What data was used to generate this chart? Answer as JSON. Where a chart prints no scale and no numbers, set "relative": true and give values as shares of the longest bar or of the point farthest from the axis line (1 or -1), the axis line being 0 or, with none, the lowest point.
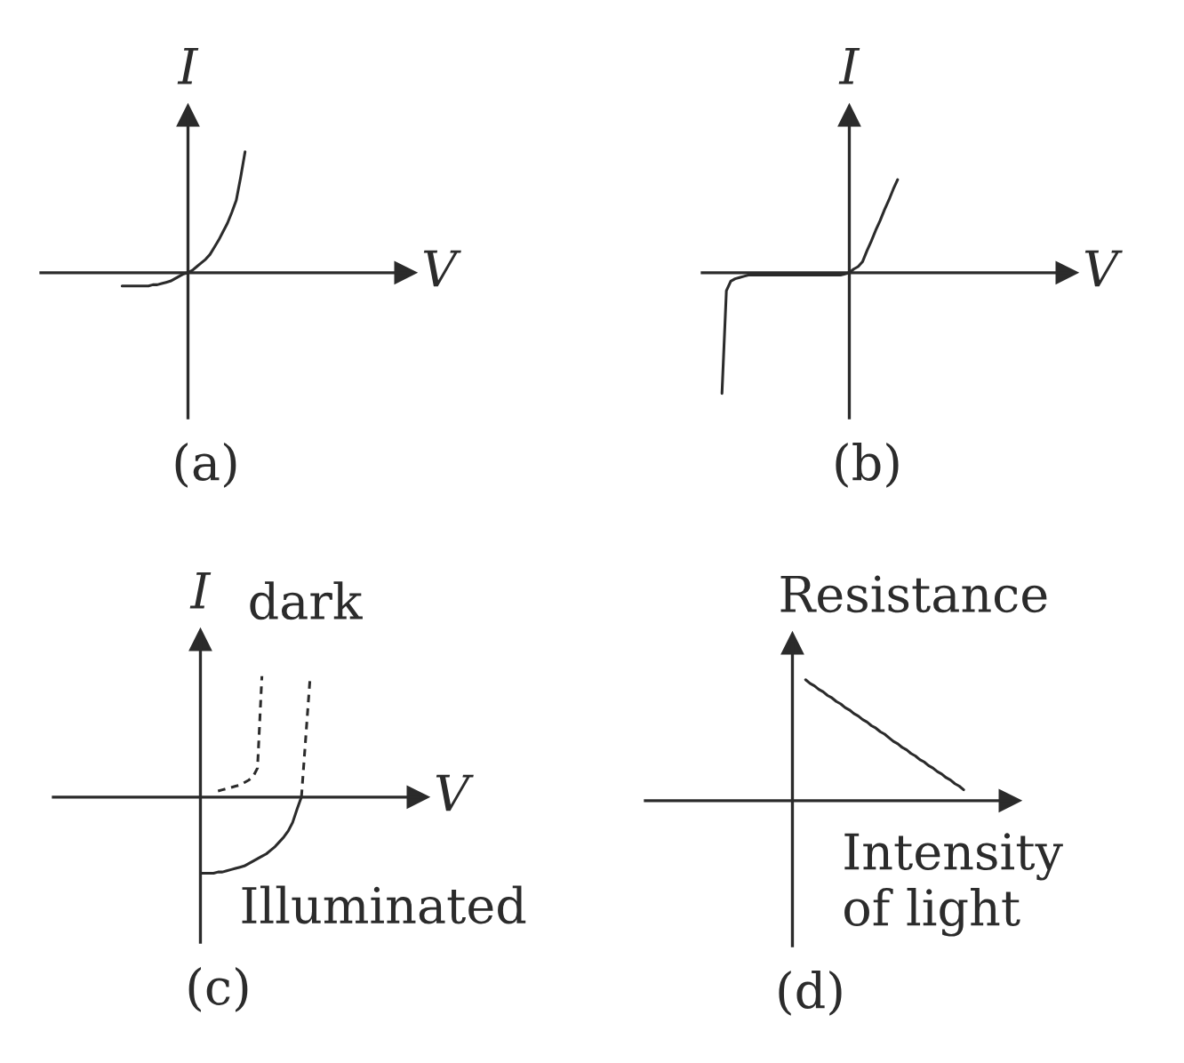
{
  "chart_data": [
    {
      "type": "line",
      "title": "(a)",
      "xlabel": "V",
      "ylabel": "I",
      "relative": true,
      "categories": [
        null,
        null,
        null,
        null,
        null,
        null,
        null,
        null,
        null,
        null,
        null,
        null,
        null,
        null,
        null,
        null,
        null,
        null,
        null,
        null,
        null,
        null,
        null,
        null,
        null,
        null,
        null,
        null,
        null,
        null,
        null,
        null,
        null,
        null,
        null,
        null,
        null,
        null,
        null,
        null,
        null,
        null,
        null,
        null,
        null,
        null,
        null,
        null,
        null,
        null,
        null,
        null,
        null,
        null,
        null,
        null,
        null,
        null,
        null,
        null,
        null,
        null,
        null,
        null,
        null,
        null,
        null,
        null,
        null,
        null,
        null,
        null,
        null,
        null,
        null,
        null,
        null,
        null,
        null,
        null,
        null,
        null,
        null
      ],
      "series": [
        {
          "color": "#2b2b2b",
          "values": [
            null,
            null,
            null,
            null,
            null,
            null,
            null,
            null,
            null,
            null,
            null,
            null,
            null,
            null,
            null,
            null,
            null,
            null,
            -0.11,
            -0.11,
            -0.11,
            -0.11,
            -0.11,
            -0.11,
            -0.11,
            -0.1,
            -0.1,
            -0.09,
            -0.08,
            -0.07,
            -0.05,
            -0.03,
            -0.01,
            0,
            0.02,
            0.05,
            0.08,
            0.11,
            0.15,
            0.21,
            0.27,
            0.34,
            0.41,
            0.5,
            0.6,
            0.79,
            1,
            null,
            null,
            null,
            null,
            null,
            null,
            null,
            null,
            null,
            null,
            null,
            null,
            null,
            null,
            null,
            null,
            null,
            null,
            null,
            null,
            null,
            null,
            null,
            null,
            null,
            null,
            null,
            null,
            null,
            null,
            null,
            null,
            null,
            null,
            null,
            null
          ]
        }
      ]
    },
    {
      "type": "line",
      "title": "(b)",
      "xlabel": "V",
      "ylabel": "I",
      "relative": true,
      "categories": [
        null,
        null,
        null,
        null,
        null,
        null,
        null,
        null,
        null,
        null,
        null,
        null,
        null,
        null,
        null,
        null,
        null,
        null,
        null,
        null,
        null,
        null,
        null,
        null,
        null,
        null,
        null,
        null,
        null,
        null,
        null,
        null,
        null,
        null,
        null,
        null,
        null,
        null,
        null,
        null,
        null,
        null,
        null,
        null,
        null,
        null,
        null,
        null,
        null,
        null,
        null,
        null,
        null,
        null,
        null,
        null,
        null,
        null,
        null,
        null,
        null,
        null,
        null,
        null,
        null,
        null,
        null,
        null,
        null,
        null,
        null,
        null,
        null,
        null,
        null,
        null,
        null,
        null,
        null,
        null,
        null,
        null,
        null
      ],
      "series": [
        {
          "color": "#2b2b2b",
          "values": [
            null,
            null,
            null,
            null,
            -1,
            -0.15,
            -0.07,
            -0.05,
            -0.04,
            -0.03,
            -0.02,
            -0.02,
            -0.02,
            -0.02,
            -0.02,
            -0.02,
            -0.02,
            -0.02,
            -0.02,
            -0.02,
            -0.02,
            -0.02,
            -0.02,
            -0.02,
            -0.02,
            -0.02,
            -0.02,
            -0.02,
            -0.02,
            -0.02,
            -0.02,
            -0.02,
            -0.01,
            0,
            0.03,
            0.05,
            0.09,
            0.18,
            0.26,
            0.35,
            0.43,
            0.52,
            0.6,
            0.69,
            0.77,
            null,
            null,
            null,
            null,
            null,
            null,
            null,
            null,
            null,
            null,
            null,
            null,
            null,
            null,
            null,
            null,
            null,
            null,
            null,
            null,
            null,
            null,
            null,
            null,
            null,
            null,
            null,
            null,
            null,
            null,
            null,
            null,
            null,
            null,
            null,
            null,
            null,
            null
          ]
        }
      ]
    },
    {
      "type": "line",
      "title": "(c)",
      "xlabel": "V",
      "ylabel": "I",
      "relative": true,
      "categories": [
        null,
        null,
        null,
        null,
        null,
        null,
        null,
        null,
        null,
        null,
        null,
        null,
        null,
        null,
        null,
        null,
        null,
        null,
        null,
        null,
        null,
        null,
        null,
        null,
        null,
        null,
        null,
        null,
        null,
        null,
        null,
        null,
        null,
        null,
        null,
        null,
        null,
        null,
        null,
        null,
        null,
        null,
        null,
        null,
        null,
        null,
        null,
        null,
        null,
        null,
        null,
        null,
        null,
        null,
        null,
        null,
        null,
        null,
        null,
        null,
        null,
        null,
        null,
        null,
        null,
        null,
        null,
        null,
        null,
        null,
        null,
        null,
        null,
        null,
        null,
        null,
        null,
        null,
        null,
        null,
        null,
        null,
        null
      ],
      "series": [
        {
          "name": "dark",
          "color": "#2b2b2b",
          "line_style": "dashed",
          "values": [
            null,
            null,
            null,
            null,
            null,
            null,
            null,
            null,
            null,
            null,
            null,
            null,
            null,
            null,
            null,
            null,
            null,
            null,
            null,
            null,
            null,
            null,
            null,
            null,
            null,
            null,
            null,
            null,
            null,
            null,
            null,
            null,
            null,
            null,
            null,
            null,
            null,
            0.05,
            0.06,
            0.07,
            0.08,
            0.09,
            0.1,
            0.12,
            0.14,
            0.17,
            0.24,
            1,
            null,
            null,
            null,
            null,
            null,
            null,
            null,
            null,
            null,
            null,
            null,
            null,
            null,
            null,
            null,
            null,
            null,
            null,
            null,
            null,
            null,
            null,
            null,
            null,
            null,
            null,
            null,
            null,
            null,
            null,
            null,
            null,
            null,
            null,
            null
          ]
        },
        {
          "color": "#2b2b2b",
          "line_style": "dashed",
          "values": [
            null,
            null,
            null,
            null,
            null,
            null,
            null,
            null,
            null,
            null,
            null,
            null,
            null,
            null,
            null,
            null,
            null,
            null,
            null,
            null,
            null,
            null,
            null,
            null,
            null,
            null,
            null,
            null,
            null,
            null,
            null,
            null,
            null,
            null,
            null,
            null,
            null,
            null,
            null,
            null,
            null,
            null,
            null,
            null,
            null,
            null,
            null,
            null,
            null,
            null,
            null,
            null,
            null,
            null,
            null,
            null,
            0,
            0.5,
            1,
            null,
            null,
            null,
            null,
            null,
            null,
            null,
            null,
            null,
            null,
            null,
            null,
            null,
            null,
            null,
            null,
            null,
            null,
            null,
            null,
            null,
            null,
            null,
            null
          ]
        },
        {
          "name": "Illuminated",
          "color": "#2b2b2b",
          "values": [
            null,
            null,
            null,
            null,
            null,
            null,
            null,
            null,
            null,
            null,
            null,
            null,
            null,
            null,
            null,
            null,
            null,
            null,
            null,
            null,
            null,
            null,
            null,
            null,
            null,
            null,
            null,
            null,
            null,
            null,
            null,
            null,
            null,
            -0.63,
            -0.63,
            -0.63,
            -0.63,
            -0.62,
            -0.62,
            -0.61,
            -0.6,
            -0.59,
            -0.58,
            -0.57,
            -0.55,
            -0.53,
            -0.51,
            -0.49,
            -0.47,
            -0.44,
            -0.41,
            -0.37,
            -0.33,
            -0.28,
            -0.21,
            -0.1,
            0,
            null,
            null,
            null,
            null,
            null,
            null,
            null,
            null,
            null,
            null,
            null,
            null,
            null,
            null,
            null,
            null,
            null,
            null,
            null,
            null,
            null,
            null,
            null,
            null,
            null,
            null
          ]
        }
      ]
    },
    {
      "type": "line",
      "title": "(d)",
      "xlabel": "Intensity\nof light",
      "ylabel": "Resistance",
      "relative": true,
      "categories": [
        null,
        null,
        null,
        null,
        null,
        null,
        null,
        null,
        null,
        null,
        null,
        null,
        null,
        null,
        null,
        null,
        null,
        null,
        null,
        null,
        null,
        null,
        null,
        null,
        null,
        null,
        null,
        null,
        null,
        null,
        null,
        null,
        null,
        null,
        null,
        null,
        null,
        null,
        null,
        null,
        null,
        null,
        null,
        null,
        null,
        null,
        null,
        null,
        null,
        null,
        null,
        null,
        null,
        null,
        null,
        null,
        null,
        null,
        null,
        null,
        null,
        null,
        null,
        null,
        null,
        null,
        null,
        null,
        null,
        null,
        null,
        null,
        null,
        null,
        null,
        null,
        null,
        null,
        null,
        null,
        null,
        null,
        null
      ],
      "series": [
        {
          "color": "#2b2b2b",
          "values": [
            null,
            null,
            null,
            null,
            null,
            null,
            null,
            null,
            null,
            null,
            null,
            null,
            null,
            null,
            null,
            null,
            null,
            null,
            null,
            null,
            null,
            null,
            null,
            null,
            null,
            null,
            null,
            null,
            null,
            null,
            null,
            null,
            null,
            null,
            null,
            null,
            1,
            0.97,
            0.95,
            0.92,
            0.9,
            0.87,
            0.85,
            0.82,
            0.8,
            0.77,
            0.75,
            0.72,
            0.7,
            0.67,
            0.65,
            0.62,
            0.6,
            0.57,
            0.55,
            0.52,
            0.49,
            0.47,
            0.44,
            0.42,
            0.39,
            0.37,
            0.34,
            0.32,
            0.29,
            0.27,
            0.24,
            0.22,
            0.19,
            0.17,
            0.14,
            0.12,
            0.09,
            null,
            null,
            null,
            null,
            null,
            null,
            null,
            null,
            null,
            null
          ]
        }
      ]
    }
  ]
}
